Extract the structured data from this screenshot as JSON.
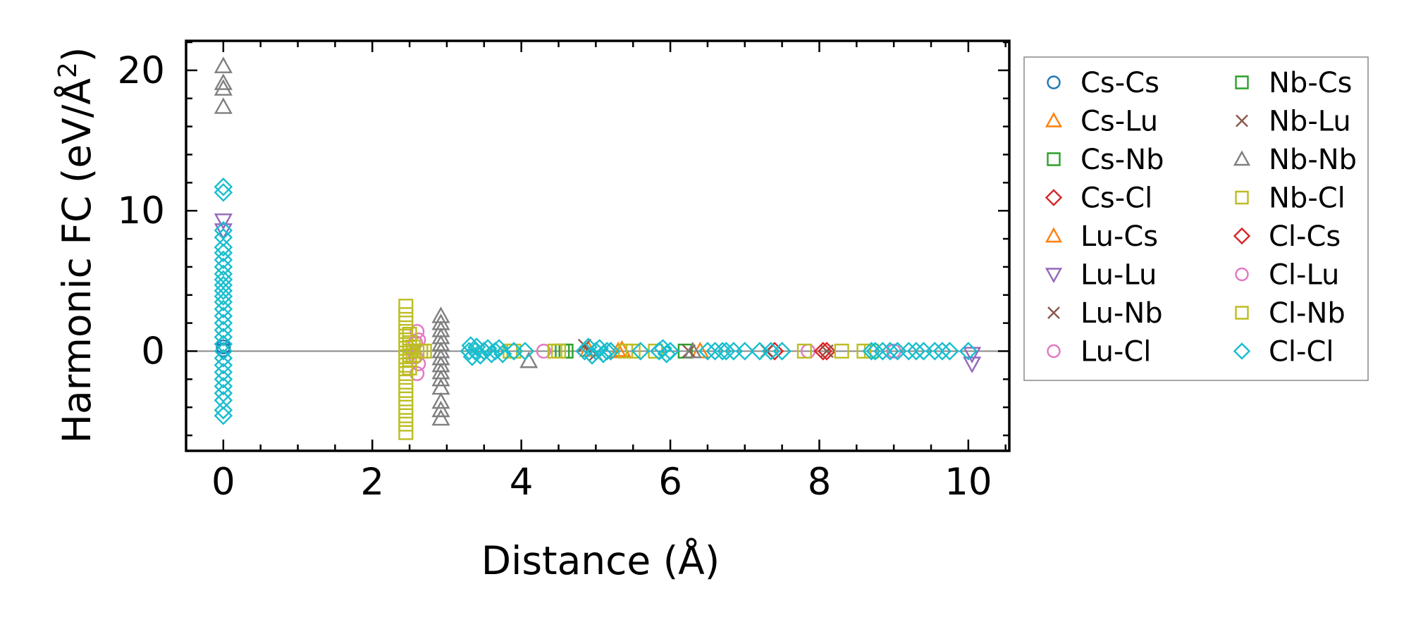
{
  "chart_data": {
    "type": "scatter",
    "xlabel": "Distance (Å)",
    "ylabel_main": "Harmonic FC (eV/Å",
    "ylabel_sup": "2",
    "ylabel_end": ")",
    "xlim": [
      -0.5,
      10.55
    ],
    "ylim": [
      -7.1,
      22.1
    ],
    "xticks": [
      0,
      2,
      4,
      6,
      8,
      10
    ],
    "yticks": [
      0,
      10,
      20
    ],
    "xtick_labels": [
      "0",
      "2",
      "4",
      "6",
      "8",
      "10"
    ],
    "ytick_labels": [
      "0",
      "10",
      "20"
    ],
    "grid": false,
    "zero_line": true,
    "legend_position": "outside-right",
    "series": [
      {
        "name": "Cs-Cs",
        "color": "#1f77b4",
        "marker": "circle",
        "points": [
          [
            0,
            0.3
          ],
          [
            0,
            0.1
          ]
        ]
      },
      {
        "name": "Cs-Lu",
        "color": "#ff7f0e",
        "marker": "triangle-up",
        "points": [
          [
            4.9,
            0.1
          ],
          [
            5.3,
            0.0
          ]
        ]
      },
      {
        "name": "Cs-Nb",
        "color": "#2ca02c",
        "marker": "square",
        "points": [
          [
            4.6,
            0.0
          ],
          [
            6.2,
            0.0
          ]
        ]
      },
      {
        "name": "Cs-Cl",
        "color": "#d62728",
        "marker": "diamond",
        "points": [
          [
            3.5,
            0.0
          ],
          [
            5.2,
            0.0
          ],
          [
            7.4,
            0.0
          ],
          [
            8.1,
            0.0
          ]
        ]
      },
      {
        "name": "Lu-Cs",
        "color": "#ff7f0e",
        "marker": "triangle-up",
        "points": [
          [
            5.35,
            0.1
          ],
          [
            6.4,
            0.0
          ]
        ]
      },
      {
        "name": "Lu-Lu",
        "color": "#9467bd",
        "marker": "triangle-down",
        "points": [
          [
            0,
            9.3
          ],
          [
            0,
            8.6
          ],
          [
            10.05,
            -0.9
          ],
          [
            10.05,
            -0.2
          ]
        ]
      },
      {
        "name": "Lu-Nb",
        "color": "#8c564b",
        "marker": "x",
        "points": [
          [
            4.85,
            0.4
          ],
          [
            5.0,
            -0.2
          ],
          [
            6.25,
            0.0
          ],
          [
            8.1,
            0.0
          ]
        ]
      },
      {
        "name": "Lu-Cl",
        "color": "#e377c2",
        "marker": "circle",
        "points": [
          [
            2.6,
            1.4
          ],
          [
            2.62,
            0.8
          ],
          [
            2.6,
            -1.6
          ],
          [
            2.62,
            -0.9
          ],
          [
            4.3,
            0.0
          ],
          [
            7.85,
            0.0
          ],
          [
            9.0,
            0.0
          ]
        ]
      },
      {
        "name": "Nb-Cs",
        "color": "#2ca02c",
        "marker": "square",
        "points": [
          [
            4.55,
            0.0
          ]
        ]
      },
      {
        "name": "Nb-Lu",
        "color": "#8c564b",
        "marker": "x",
        "points": [
          [
            4.9,
            0.0
          ],
          [
            7.3,
            0.0
          ]
        ]
      },
      {
        "name": "Nb-Nb",
        "color": "#7f7f7f",
        "marker": "triangle-up",
        "points": [
          [
            0,
            20.3
          ],
          [
            0,
            19.1
          ],
          [
            0,
            18.7
          ],
          [
            0,
            17.4
          ],
          [
            4.1,
            -0.7
          ],
          [
            6.3,
            0.0
          ],
          [
            2.92,
            2.5
          ],
          [
            2.92,
            2.0
          ],
          [
            2.92,
            1.5
          ],
          [
            2.92,
            1.0
          ],
          [
            2.92,
            0.5
          ],
          [
            2.92,
            0.0
          ],
          [
            2.92,
            -0.5
          ],
          [
            2.92,
            -1.0
          ],
          [
            2.92,
            -1.5
          ],
          [
            2.92,
            -2.0
          ],
          [
            2.92,
            -2.6
          ],
          [
            2.92,
            -3.6
          ],
          [
            2.92,
            -4.2
          ],
          [
            2.92,
            -4.8
          ]
        ]
      },
      {
        "name": "Nb-Cl",
        "color": "#bcbd22",
        "marker": "square",
        "points": [
          [
            2.45,
            3.2
          ],
          [
            2.45,
            2.6
          ],
          [
            2.45,
            2.0
          ],
          [
            2.45,
            1.4
          ],
          [
            2.45,
            0.8
          ],
          [
            2.45,
            0.2
          ],
          [
            2.45,
            -0.4
          ],
          [
            2.45,
            -1.0
          ],
          [
            2.45,
            -1.6
          ],
          [
            2.45,
            -2.2
          ],
          [
            2.45,
            -2.8
          ],
          [
            2.45,
            -3.4
          ],
          [
            2.45,
            -4.0
          ],
          [
            2.45,
            -4.6
          ],
          [
            2.45,
            -5.2
          ],
          [
            2.45,
            -5.8
          ],
          [
            3.9,
            0.0
          ],
          [
            4.5,
            0.0
          ],
          [
            5.4,
            0.0
          ],
          [
            5.8,
            0.0
          ],
          [
            8.3,
            0.0
          ],
          [
            8.6,
            0.0
          ]
        ]
      },
      {
        "name": "Cl-Cs",
        "color": "#d62728",
        "marker": "diamond",
        "points": [
          [
            8.05,
            0.0
          ]
        ]
      },
      {
        "name": "Cl-Lu",
        "color": "#e377c2",
        "marker": "circle",
        "points": [
          [
            2.58,
            0.6
          ],
          [
            2.58,
            -0.4
          ]
        ]
      },
      {
        "name": "Cl-Nb",
        "color": "#bcbd22",
        "marker": "square",
        "points": [
          [
            2.5,
            1.2
          ],
          [
            2.5,
            0.6
          ],
          [
            2.5,
            0.0
          ],
          [
            2.5,
            -0.6
          ],
          [
            2.5,
            -1.2
          ],
          [
            2.55,
            0.3
          ],
          [
            2.55,
            -0.3
          ],
          [
            2.6,
            0.0
          ],
          [
            2.65,
            0.0
          ],
          [
            2.7,
            0.0
          ],
          [
            3.85,
            0.0
          ],
          [
            4.45,
            0.0
          ],
          [
            5.5,
            0.0
          ],
          [
            7.8,
            0.0
          ],
          [
            8.7,
            0.0
          ]
        ]
      },
      {
        "name": "Cl-Cl",
        "color": "#17becf",
        "marker": "diamond",
        "points": [
          [
            0,
            11.7
          ],
          [
            0,
            11.3
          ],
          [
            0,
            8.6
          ],
          [
            0,
            8.1
          ],
          [
            0,
            7.4
          ],
          [
            0,
            7.0
          ],
          [
            0,
            6.5
          ],
          [
            0,
            6.0
          ],
          [
            0,
            5.5
          ],
          [
            0,
            5.1
          ],
          [
            0,
            4.7
          ],
          [
            0,
            4.3
          ],
          [
            0,
            3.9
          ],
          [
            0,
            3.5
          ],
          [
            0,
            3.0
          ],
          [
            0,
            2.5
          ],
          [
            0,
            2.0
          ],
          [
            0,
            1.5
          ],
          [
            0,
            1.0
          ],
          [
            0,
            0.5
          ],
          [
            0,
            0.0
          ],
          [
            0,
            -0.5
          ],
          [
            0,
            -1.0
          ],
          [
            0,
            -1.5
          ],
          [
            0,
            -2.0
          ],
          [
            0,
            -2.5
          ],
          [
            0,
            -3.0
          ],
          [
            0,
            -3.5
          ],
          [
            0,
            -4.2
          ],
          [
            0,
            -4.6
          ],
          [
            3.3,
            0.0
          ],
          [
            3.32,
            0.4
          ],
          [
            3.34,
            -0.4
          ],
          [
            3.38,
            0.0
          ],
          [
            3.4,
            0.3
          ],
          [
            3.45,
            -0.3
          ],
          [
            3.5,
            0.0
          ],
          [
            3.55,
            0.2
          ],
          [
            3.6,
            -0.2
          ],
          [
            3.65,
            0.0
          ],
          [
            3.7,
            0.2
          ],
          [
            3.75,
            -0.2
          ],
          [
            3.9,
            0.0
          ],
          [
            4.05,
            0.0
          ],
          [
            4.85,
            0.0
          ],
          [
            4.9,
            0.3
          ],
          [
            4.95,
            -0.3
          ],
          [
            5.0,
            0.0
          ],
          [
            5.05,
            0.2
          ],
          [
            5.1,
            -0.2
          ],
          [
            5.15,
            0.0
          ],
          [
            5.2,
            0.0
          ],
          [
            5.6,
            0.0
          ],
          [
            5.85,
            0.0
          ],
          [
            5.9,
            0.2
          ],
          [
            5.95,
            -0.2
          ],
          [
            6.0,
            0.0
          ],
          [
            6.5,
            0.0
          ],
          [
            6.6,
            0.0
          ],
          [
            6.7,
            0.0
          ],
          [
            6.75,
            0.0
          ],
          [
            6.85,
            0.0
          ],
          [
            7.0,
            0.0
          ],
          [
            7.2,
            0.0
          ],
          [
            7.35,
            0.0
          ],
          [
            7.5,
            0.0
          ],
          [
            8.7,
            0.0
          ],
          [
            8.75,
            0.0
          ],
          [
            8.85,
            0.0
          ],
          [
            8.95,
            0.0
          ],
          [
            9.05,
            0.0
          ],
          [
            9.2,
            0.0
          ],
          [
            9.3,
            0.0
          ],
          [
            9.4,
            0.0
          ],
          [
            9.55,
            0.0
          ],
          [
            9.65,
            0.0
          ],
          [
            9.75,
            0.0
          ],
          [
            10.0,
            0.0
          ]
        ]
      }
    ]
  }
}
